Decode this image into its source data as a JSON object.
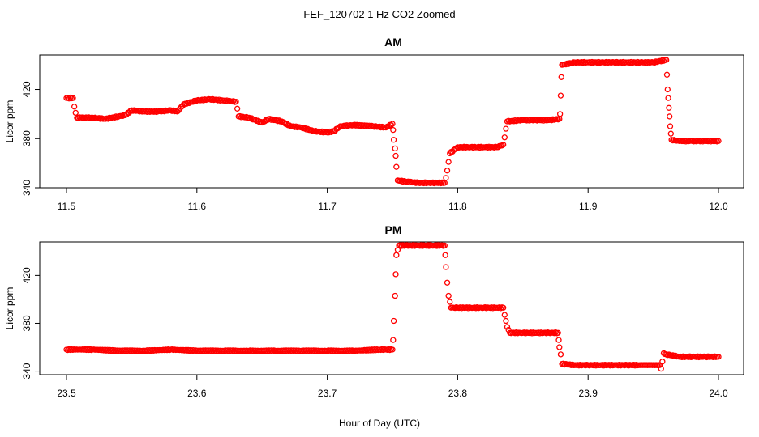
{
  "figure": {
    "title": "FEF_120702  1 Hz CO2 Zoomed",
    "xlabel": "Hour of Day (UTC)",
    "point_color": "#ff0000"
  },
  "chart_data": [
    {
      "type": "scatter",
      "title": "AM",
      "xlabel": "Hour of Day (UTC)",
      "ylabel": "Licor ppm",
      "xlim": [
        11.5,
        12.0
      ],
      "ylim": [
        340,
        448
      ],
      "xticks": [
        "11.5",
        "11.6",
        "11.7",
        "11.8",
        "11.9",
        "12.0"
      ],
      "yticks": [
        "340",
        "380",
        "420"
      ],
      "series": [
        {
          "color": "#ff0000",
          "marker": "open-circle",
          "points": [
            [
              11.5,
              413
            ],
            [
              11.505,
              413
            ],
            [
              11.506,
              406
            ],
            [
              11.507,
              401
            ],
            [
              11.508,
              397
            ],
            [
              11.52,
              397
            ],
            [
              11.53,
              396
            ],
            [
              11.54,
              398
            ],
            [
              11.545,
              399
            ],
            [
              11.55,
              403
            ],
            [
              11.56,
              402
            ],
            [
              11.57,
              402
            ],
            [
              11.58,
              403
            ],
            [
              11.585,
              402
            ],
            [
              11.59,
              408
            ],
            [
              11.6,
              411
            ],
            [
              11.61,
              412
            ],
            [
              11.62,
              411
            ],
            [
              11.63,
              410
            ],
            [
              11.632,
              398
            ],
            [
              11.64,
              397
            ],
            [
              11.65,
              393
            ],
            [
              11.655,
              396
            ],
            [
              11.665,
              394
            ],
            [
              11.672,
              390
            ],
            [
              11.68,
              389
            ],
            [
              11.69,
              386
            ],
            [
              11.7,
              385
            ],
            [
              11.705,
              386
            ],
            [
              11.71,
              390
            ],
            [
              11.72,
              391
            ],
            [
              11.735,
              390
            ],
            [
              11.745,
              389
            ],
            [
              11.75,
              392
            ],
            [
              11.7505,
              387
            ],
            [
              11.751,
              379
            ],
            [
              11.752,
              372
            ],
            [
              11.7525,
              366
            ],
            [
              11.753,
              357
            ],
            [
              11.754,
              346
            ],
            [
              11.76,
              345
            ],
            [
              11.77,
              344
            ],
            [
              11.78,
              344
            ],
            [
              11.79,
              344
            ],
            [
              11.791,
              348
            ],
            [
              11.792,
              354
            ],
            [
              11.793,
              361
            ],
            [
              11.794,
              368
            ],
            [
              11.8,
              373
            ],
            [
              11.81,
              373
            ],
            [
              11.82,
              373
            ],
            [
              11.83,
              373
            ],
            [
              11.835,
              375
            ],
            [
              11.836,
              381
            ],
            [
              11.837,
              388
            ],
            [
              11.838,
              394
            ],
            [
              11.85,
              395
            ],
            [
              11.86,
              395
            ],
            [
              11.87,
              395
            ],
            [
              11.878,
              396
            ],
            [
              11.8785,
              400
            ],
            [
              11.879,
              415
            ],
            [
              11.8795,
              430
            ],
            [
              11.88,
              440
            ],
            [
              11.89,
              442
            ],
            [
              11.9,
              442
            ],
            [
              11.91,
              442
            ],
            [
              11.92,
              442
            ],
            [
              11.93,
              442
            ],
            [
              11.94,
              442
            ],
            [
              11.95,
              442
            ],
            [
              11.96,
              444
            ],
            [
              11.9605,
              432
            ],
            [
              11.961,
              420
            ],
            [
              11.9615,
              413
            ],
            [
              11.962,
              405
            ],
            [
              11.9625,
              398
            ],
            [
              11.963,
              390
            ],
            [
              11.9635,
              384
            ],
            [
              11.964,
              379
            ],
            [
              11.97,
              378
            ],
            [
              11.98,
              378
            ],
            [
              11.99,
              378
            ],
            [
              12.0,
              378
            ]
          ]
        }
      ]
    },
    {
      "type": "scatter",
      "title": "PM",
      "xlabel": "Hour of Day (UTC)",
      "ylabel": "Licor ppm",
      "xlim": [
        23.5,
        24.0
      ],
      "ylim": [
        337,
        448
      ],
      "xticks": [
        "23.5",
        "23.6",
        "23.7",
        "23.8",
        "23.9",
        "24.0"
      ],
      "yticks": [
        "340",
        "380",
        "420"
      ],
      "series": [
        {
          "color": "#ff0000",
          "marker": "open-circle",
          "points": [
            [
              23.5,
              358
            ],
            [
              23.52,
              358
            ],
            [
              23.54,
              357
            ],
            [
              23.56,
              357
            ],
            [
              23.58,
              358
            ],
            [
              23.6,
              357
            ],
            [
              23.62,
              357
            ],
            [
              23.64,
              357
            ],
            [
              23.66,
              357
            ],
            [
              23.68,
              357
            ],
            [
              23.7,
              357
            ],
            [
              23.72,
              357
            ],
            [
              23.74,
              358
            ],
            [
              23.75,
              358
            ],
            [
              23.7505,
              366
            ],
            [
              23.751,
              382
            ],
            [
              23.752,
              403
            ],
            [
              23.7525,
              421
            ],
            [
              23.753,
              437
            ],
            [
              23.755,
              445
            ],
            [
              23.76,
              445
            ],
            [
              23.77,
              445
            ],
            [
              23.78,
              445
            ],
            [
              23.79,
              445
            ],
            [
              23.7905,
              437
            ],
            [
              23.791,
              427
            ],
            [
              23.792,
              414
            ],
            [
              23.793,
              403
            ],
            [
              23.795,
              393
            ],
            [
              23.8,
              393
            ],
            [
              23.81,
              393
            ],
            [
              23.82,
              393
            ],
            [
              23.83,
              393
            ],
            [
              23.835,
              393
            ],
            [
              23.836,
              387
            ],
            [
              23.837,
              382
            ],
            [
              23.838,
              377
            ],
            [
              23.84,
              372
            ],
            [
              23.85,
              372
            ],
            [
              23.86,
              372
            ],
            [
              23.87,
              372
            ],
            [
              23.877,
              372
            ],
            [
              23.8775,
              366
            ],
            [
              23.878,
              360
            ],
            [
              23.879,
              354
            ],
            [
              23.88,
              346
            ],
            [
              23.89,
              345
            ],
            [
              23.9,
              345
            ],
            [
              23.91,
              345
            ],
            [
              23.92,
              345
            ],
            [
              23.93,
              345
            ],
            [
              23.94,
              345
            ],
            [
              23.955,
              345
            ],
            [
              23.956,
              342
            ],
            [
              23.957,
              348
            ],
            [
              23.958,
              355
            ],
            [
              23.96,
              354
            ],
            [
              23.97,
              352
            ],
            [
              23.98,
              352
            ],
            [
              23.99,
              352
            ],
            [
              24.0,
              352
            ]
          ]
        }
      ]
    }
  ]
}
